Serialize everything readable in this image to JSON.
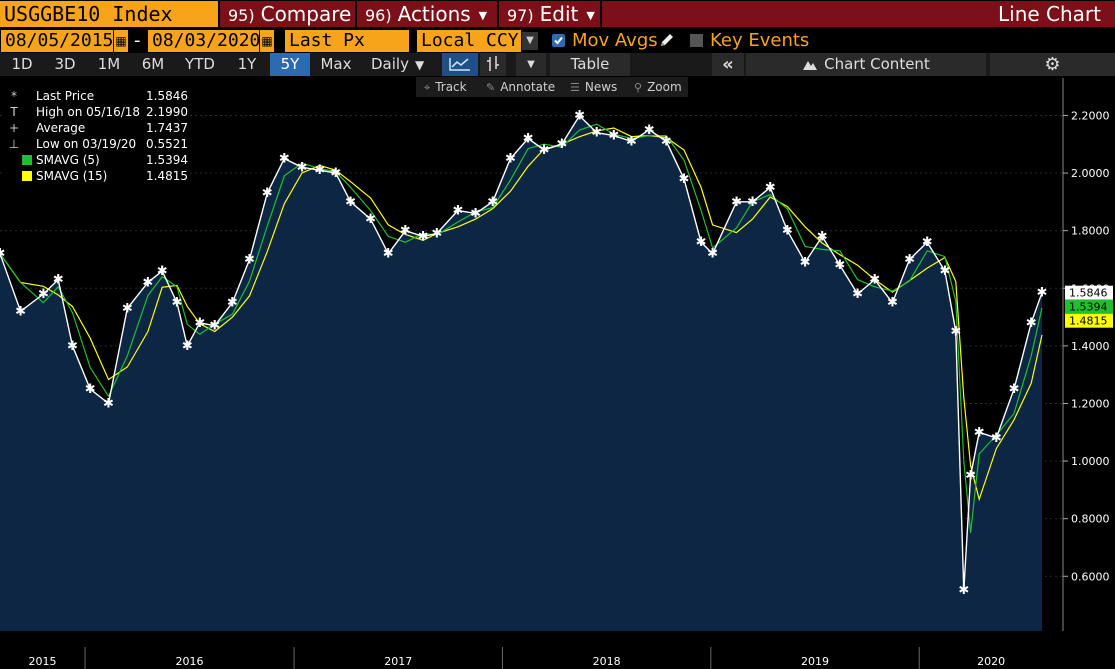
{
  "header": {
    "ticker": "USGGBE10 Index",
    "compare": {
      "num": "95)",
      "label": "Compare"
    },
    "actions": {
      "num": "96)",
      "label": "Actions"
    },
    "edit": {
      "num": "97)",
      "label": "Edit"
    },
    "window_title": "Line Chart"
  },
  "controls": {
    "start_date": "08/05/2015",
    "end_date": "08/03/2020",
    "date_sep": "-",
    "field": "Last Px",
    "currency": "Local CCY",
    "mov_avgs": "Mov Avgs",
    "mov_avgs_checked": true,
    "key_events": "Key Events",
    "key_events_checked": false
  },
  "periods": [
    "1D",
    "3D",
    "1M",
    "6M",
    "YTD",
    "1Y",
    "5Y",
    "Max"
  ],
  "active_period": "5Y",
  "frequency": "Daily",
  "toolbar": {
    "table": "Table",
    "chart_content": "Chart Content",
    "collapse_icon": "double-chevron-left-icon",
    "settings_icon": "gear-icon"
  },
  "tools": {
    "track": "Track",
    "annotate": "Annotate",
    "news": "News",
    "zoom": "Zoom"
  },
  "legend": [
    {
      "marker": "*",
      "name": "Last Price",
      "value": "1.5846"
    },
    {
      "marker": "T",
      "name": "High on 05/16/18",
      "value": "2.1990"
    },
    {
      "marker": "+",
      "name": "Average",
      "value": "1.7437"
    },
    {
      "marker": "⊥",
      "name": "Low on 03/19/20",
      "value": "0.5521"
    },
    {
      "marker": "",
      "swatch": "#1fbf2f",
      "name": "SMAVG (5)",
      "value": "1.5394"
    },
    {
      "marker": "",
      "swatch": "#ffff00",
      "name": "SMAVG (15)",
      "value": "1.4815"
    }
  ],
  "colors": {
    "area_fill": "#0c2644",
    "price_line": "#ffffff",
    "smavg5": "#1fbf2f",
    "smavg15": "#ffff00",
    "accent_orange": "#f7a41b",
    "accent_red": "#7b1019"
  },
  "price_labels": [
    {
      "value": "1.5846",
      "bg": "#ffffff",
      "fg": "#000000"
    },
    {
      "value": "1.5394",
      "bg": "#1fbf2f",
      "fg": "#000000"
    },
    {
      "value": "1.4815",
      "bg": "#ffff00",
      "fg": "#000000"
    }
  ],
  "chart_data": {
    "type": "line",
    "title": "",
    "xlabel": "",
    "ylabel": "",
    "ylim": [
      0.41,
      2.33
    ],
    "yticks": [
      "0.6000",
      "0.8000",
      "1.0000",
      "1.2000",
      "1.4000",
      "1.6000",
      "1.8000",
      "2.0000",
      "2.2000"
    ],
    "xticks": [
      "2015",
      "2016",
      "2017",
      "2018",
      "2019",
      "2020"
    ],
    "xlim": [
      "2015-08-05",
      "2020-08-03"
    ],
    "grid": true,
    "series": [
      {
        "name": "Last Price",
        "x": [
          "2015-08-05",
          "2015-09-10",
          "2015-10-20",
          "2015-11-15",
          "2015-12-10",
          "2016-01-10",
          "2016-02-11",
          "2016-03-15",
          "2016-04-20",
          "2016-05-15",
          "2016-06-10",
          "2016-06-28",
          "2016-07-20",
          "2016-08-15",
          "2016-09-15",
          "2016-10-15",
          "2016-11-15",
          "2016-12-15",
          "2017-01-15",
          "2017-02-15",
          "2017-03-15",
          "2017-04-10",
          "2017-05-15",
          "2017-06-15",
          "2017-07-15",
          "2017-08-15",
          "2017-09-08",
          "2017-10-15",
          "2017-11-15",
          "2017-12-15",
          "2018-01-15",
          "2018-02-15",
          "2018-03-15",
          "2018-04-15",
          "2018-05-16",
          "2018-06-15",
          "2018-07-15",
          "2018-08-15",
          "2018-09-15",
          "2018-10-15",
          "2018-11-15",
          "2018-12-15",
          "2019-01-04",
          "2019-02-15",
          "2019-03-15",
          "2019-04-15",
          "2019-05-15",
          "2019-06-15",
          "2019-07-15",
          "2019-08-15",
          "2019-09-15",
          "2019-10-15",
          "2019-11-15",
          "2019-12-15",
          "2020-01-15",
          "2020-02-15",
          "2020-03-05",
          "2020-03-19",
          "2020-03-31",
          "2020-04-15",
          "2020-05-15",
          "2020-06-15",
          "2020-07-15",
          "2020-08-03"
        ],
        "y": [
          1.72,
          1.52,
          1.58,
          1.63,
          1.4,
          1.25,
          1.2,
          1.53,
          1.62,
          1.66,
          1.55,
          1.4,
          1.48,
          1.47,
          1.55,
          1.7,
          1.93,
          2.05,
          2.02,
          2.01,
          2.0,
          1.9,
          1.84,
          1.72,
          1.8,
          1.78,
          1.79,
          1.87,
          1.86,
          1.9,
          2.05,
          2.12,
          2.08,
          2.1,
          2.199,
          2.14,
          2.13,
          2.11,
          2.15,
          2.11,
          1.98,
          1.76,
          1.72,
          1.9,
          1.9,
          1.95,
          1.8,
          1.69,
          1.78,
          1.68,
          1.58,
          1.63,
          1.55,
          1.7,
          1.76,
          1.66,
          1.45,
          0.5521,
          0.95,
          1.1,
          1.08,
          1.25,
          1.48,
          1.5846
        ]
      },
      {
        "name": "SMAVG (5)",
        "last": 1.5394
      },
      {
        "name": "SMAVG (15)",
        "last": 1.4815
      }
    ]
  }
}
